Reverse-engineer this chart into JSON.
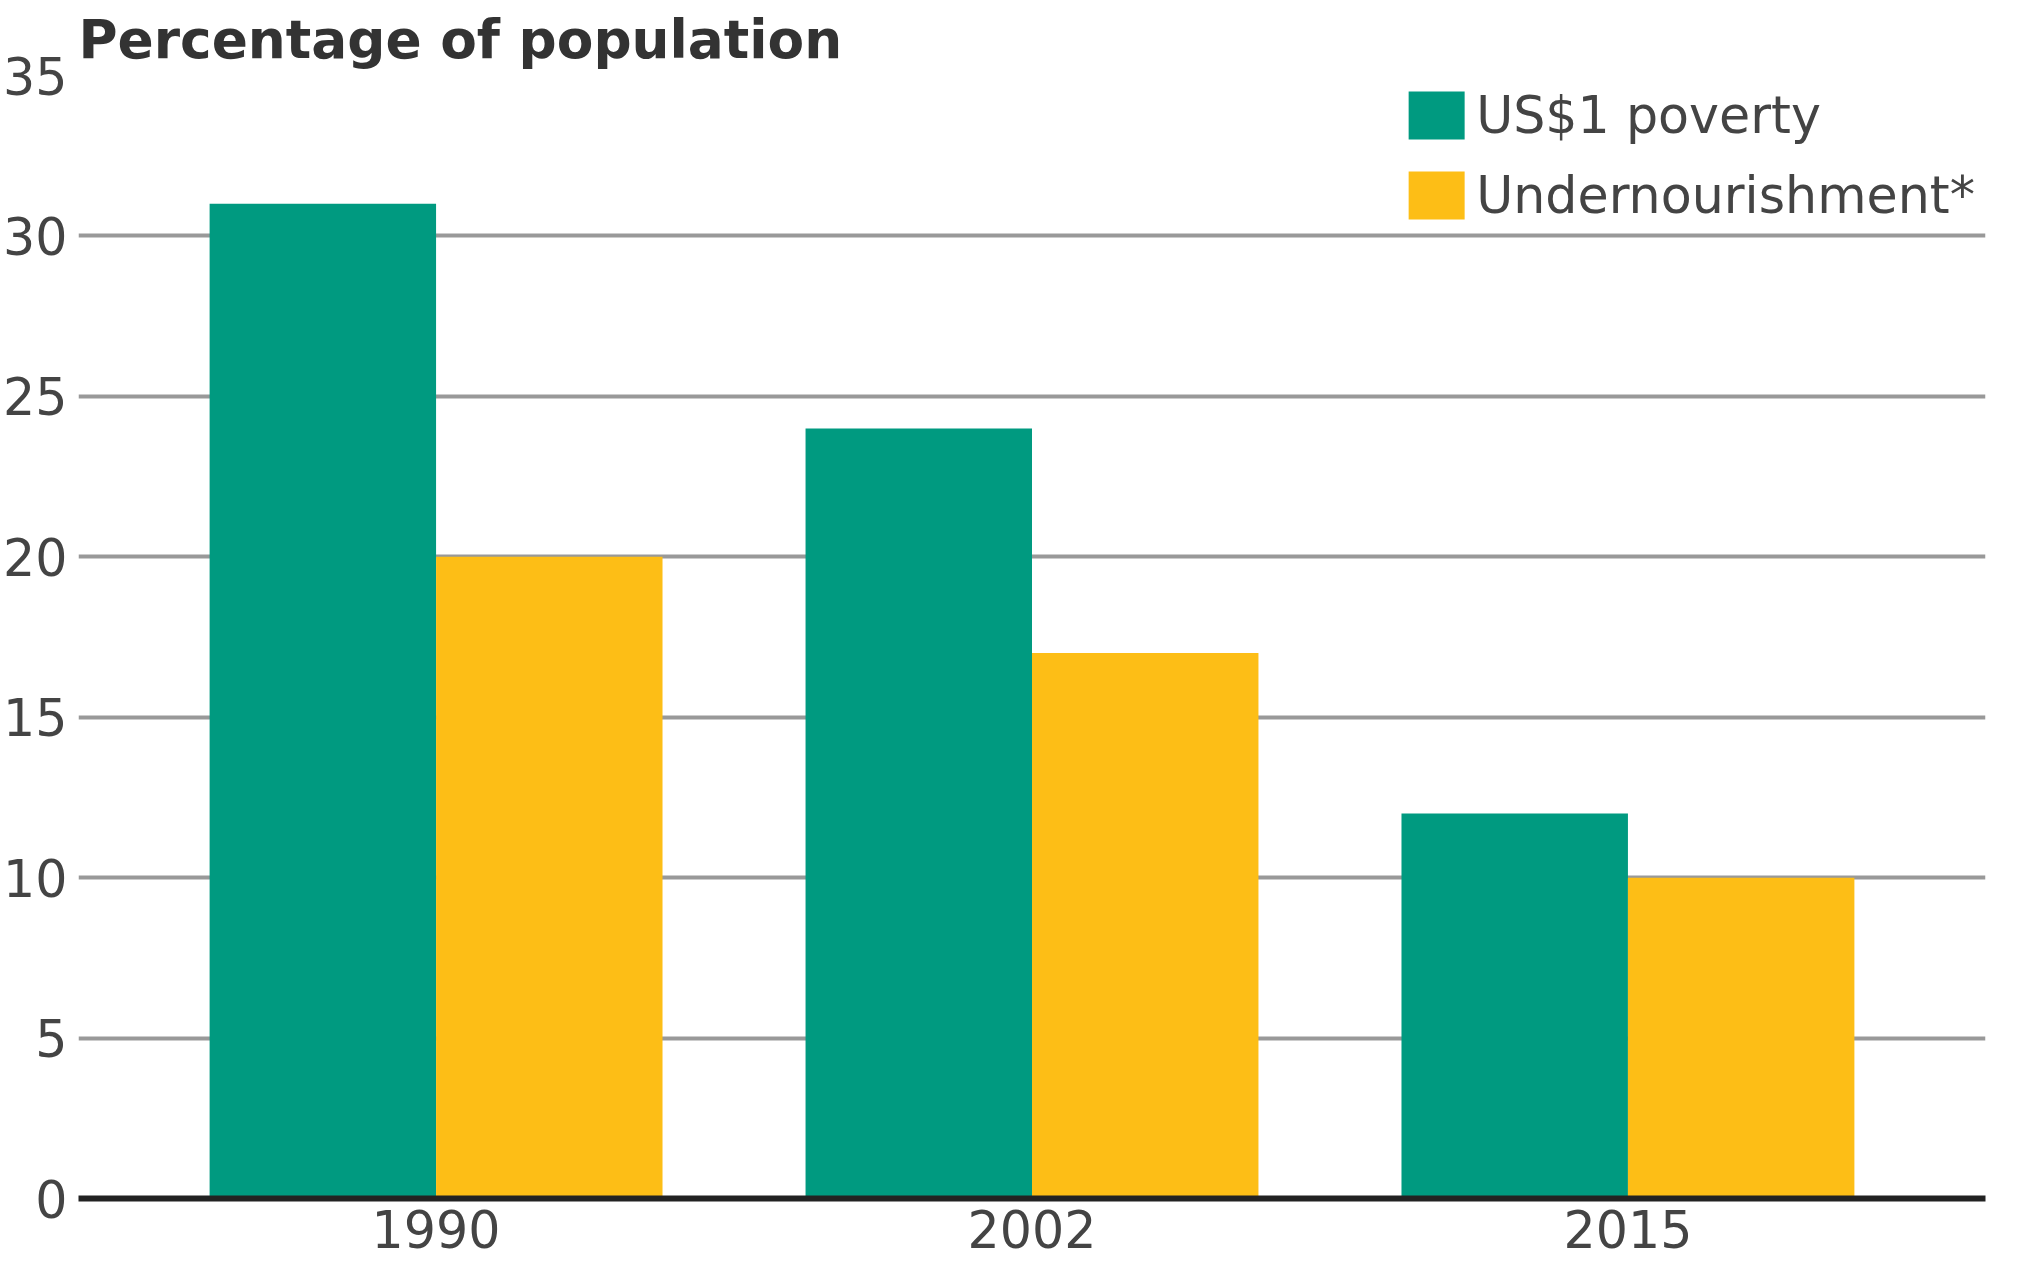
{
  "chart_data": {
    "type": "bar",
    "ylabel": "Percentage of population",
    "categories": [
      "1990",
      "2002",
      "2015"
    ],
    "series": [
      {
        "name": "US$1 poverty",
        "color": "#009a80",
        "values": [
          31,
          24,
          12
        ]
      },
      {
        "name": "Undernourishment*",
        "color": "#fdbe16",
        "values": [
          20,
          17,
          10
        ]
      }
    ],
    "ylim": [
      0,
      35
    ],
    "yticks": [
      0,
      5,
      10,
      15,
      20,
      25,
      30,
      35
    ],
    "grid": "y",
    "legend": "top right"
  }
}
